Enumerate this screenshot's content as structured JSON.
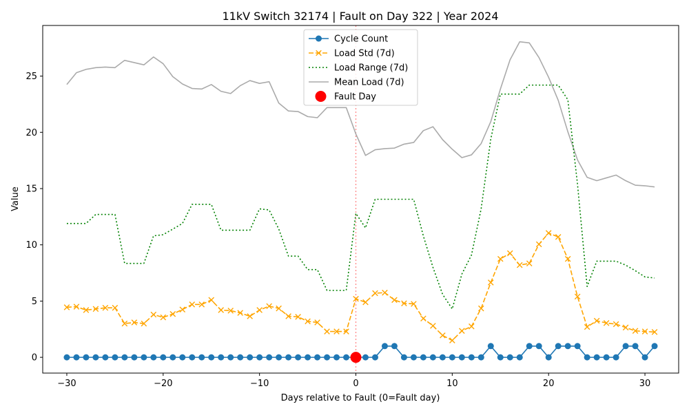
{
  "chart_data": {
    "type": "line",
    "title": "11kV Switch 32174 | Fault on Day 322 | Year 2024",
    "xlabel": "Days relative to Fault (0=Fault day)",
    "ylabel": "Value",
    "xlim": [
      -32.5,
      33.5
    ],
    "ylim": [
      -1.4,
      29.5
    ],
    "xticks": [
      -30,
      -20,
      -10,
      0,
      10,
      20,
      30
    ],
    "yticks": [
      0,
      5,
      10,
      15,
      20,
      25
    ],
    "x": [
      -30,
      -29,
      -28,
      -27,
      -26,
      -25,
      -24,
      -23,
      -22,
      -21,
      -20,
      -19,
      -18,
      -17,
      -16,
      -15,
      -14,
      -13,
      -12,
      -11,
      -10,
      -9,
      -8,
      -7,
      -6,
      -5,
      -4,
      -3,
      -2,
      -1,
      0,
      1,
      2,
      3,
      4,
      5,
      6,
      7,
      8,
      9,
      10,
      11,
      12,
      13,
      14,
      15,
      16,
      17,
      18,
      19,
      20,
      21,
      22,
      23,
      24,
      25,
      26,
      27,
      28,
      29,
      30,
      31
    ],
    "legend_position": "upper center",
    "series": [
      {
        "name": "Cycle Count",
        "color": "#1f77b4",
        "style": "solid",
        "marker": "circle",
        "values": [
          0,
          0,
          0,
          0,
          0,
          0,
          0,
          0,
          0,
          0,
          0,
          0,
          0,
          0,
          0,
          0,
          0,
          0,
          0,
          0,
          0,
          0,
          0,
          0,
          0,
          0,
          0,
          0,
          0,
          0,
          0,
          0,
          0,
          1,
          1,
          0,
          0,
          0,
          0,
          0,
          0,
          0,
          0,
          0,
          1,
          0,
          0,
          0,
          1,
          1,
          0,
          1,
          1,
          1,
          0,
          0,
          0,
          0,
          1,
          1,
          0,
          1
        ]
      },
      {
        "name": "Load Std (7d)",
        "color": "#ffa500",
        "style": "dashed",
        "marker": "x",
        "values": [
          4.45,
          4.5,
          4.2,
          4.3,
          4.4,
          4.4,
          3.0,
          3.1,
          3.0,
          3.8,
          3.55,
          3.85,
          4.25,
          4.7,
          4.7,
          5.1,
          4.2,
          4.15,
          3.95,
          3.65,
          4.2,
          4.55,
          4.35,
          3.65,
          3.6,
          3.2,
          3.1,
          2.3,
          2.3,
          2.3,
          5.2,
          4.9,
          5.7,
          5.75,
          5.1,
          4.8,
          4.75,
          3.45,
          2.8,
          1.95,
          1.5,
          2.35,
          2.75,
          4.35,
          6.65,
          8.75,
          9.25,
          8.2,
          8.35,
          10.05,
          11.05,
          10.7,
          8.75,
          5.4,
          2.7,
          3.25,
          3.05,
          2.95,
          2.65,
          2.35,
          2.3,
          2.25
        ]
      },
      {
        "name": "Load Range (7d)",
        "color": "#008000",
        "style": "dotted",
        "marker": "none",
        "values": [
          11.9,
          11.9,
          11.9,
          12.7,
          12.7,
          12.7,
          8.35,
          8.35,
          8.35,
          10.8,
          10.9,
          11.4,
          11.9,
          13.6,
          13.6,
          13.6,
          11.3,
          11.3,
          11.3,
          11.3,
          13.2,
          13.1,
          11.4,
          9.0,
          9.0,
          7.8,
          7.8,
          5.95,
          5.95,
          5.95,
          12.8,
          11.5,
          14.05,
          14.05,
          14.05,
          14.05,
          14.05,
          10.8,
          8.0,
          5.6,
          4.3,
          7.4,
          9.1,
          13.2,
          19.4,
          23.4,
          23.4,
          23.4,
          24.2,
          24.2,
          24.2,
          24.2,
          22.9,
          15.4,
          6.3,
          8.55,
          8.55,
          8.55,
          8.2,
          7.7,
          7.15,
          7.05
        ]
      },
      {
        "name": "Mean Load (7d)",
        "color": "#aaaaaa",
        "style": "solid",
        "marker": "none",
        "values": [
          24.25,
          25.3,
          25.6,
          25.75,
          25.8,
          25.75,
          26.4,
          26.2,
          26.0,
          26.7,
          26.1,
          24.95,
          24.3,
          23.9,
          23.85,
          24.25,
          23.65,
          23.45,
          24.15,
          24.6,
          24.35,
          24.5,
          22.6,
          21.9,
          21.85,
          21.4,
          21.3,
          22.2,
          22.2,
          22.2,
          19.85,
          17.95,
          18.45,
          18.55,
          18.6,
          18.95,
          19.1,
          20.15,
          20.5,
          19.35,
          18.5,
          17.75,
          18.0,
          19.0,
          20.95,
          23.85,
          26.45,
          28.05,
          27.95,
          26.65,
          24.9,
          22.85,
          20.05,
          17.55,
          16.0,
          15.7,
          15.95,
          16.2,
          15.7,
          15.3,
          15.25,
          15.15
        ]
      }
    ],
    "fault_marker": {
      "name": "Fault Day",
      "color": "#ff0000",
      "x": 0,
      "y": 0
    },
    "vline": {
      "x": 0,
      "color": "#ff0000"
    }
  }
}
